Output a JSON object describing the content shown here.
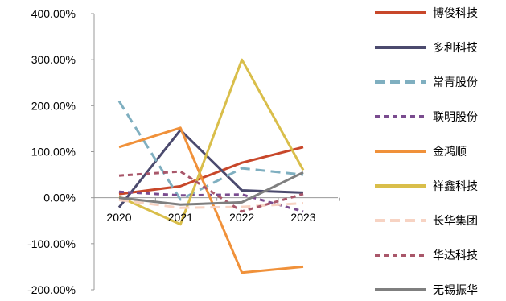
{
  "chart_data": {
    "type": "line",
    "categories": [
      "2020",
      "2021",
      "2022",
      "2023"
    ],
    "y_ticks": [
      "400.00%",
      "300.00%",
      "200.00%",
      "100.00%",
      "0.00%",
      "-100.00%",
      "-200.00%"
    ],
    "ylim": [
      -200,
      400
    ],
    "legend_position": "right",
    "series": [
      {
        "name": "博俊科技",
        "values": [
          8,
          25,
          76,
          110
        ],
        "color": "#C8472A",
        "dash": "solid"
      },
      {
        "name": "多利科技",
        "values": [
          -21,
          147,
          16,
          11
        ],
        "color": "#4B4A6E",
        "dash": "solid"
      },
      {
        "name": "常青股份",
        "values": [
          210,
          -4,
          64,
          50
        ],
        "color": "#7FAFC0",
        "dash": "dashed"
      },
      {
        "name": "联明股份",
        "values": [
          13,
          5,
          7,
          -30
        ],
        "color": "#7A4C8F",
        "dash": "dotted"
      },
      {
        "name": "金鸿顺",
        "values": [
          110,
          152,
          -163,
          -150
        ],
        "color": "#F0913A",
        "dash": "solid"
      },
      {
        "name": "祥鑫科技",
        "values": [
          2,
          -58,
          300,
          60
        ],
        "color": "#D9BE4A",
        "dash": "solid"
      },
      {
        "name": "长华集团",
        "values": [
          -5,
          -22,
          -20,
          -12
        ],
        "color": "#F7D3C3",
        "dash": "dashed"
      },
      {
        "name": "华达科技",
        "values": [
          48,
          57,
          -30,
          8
        ],
        "color": "#A9576A",
        "dash": "dotted"
      },
      {
        "name": "无锡振华",
        "values": [
          0,
          -15,
          -10,
          55
        ],
        "color": "#7F7F7F",
        "dash": "solid"
      }
    ]
  }
}
